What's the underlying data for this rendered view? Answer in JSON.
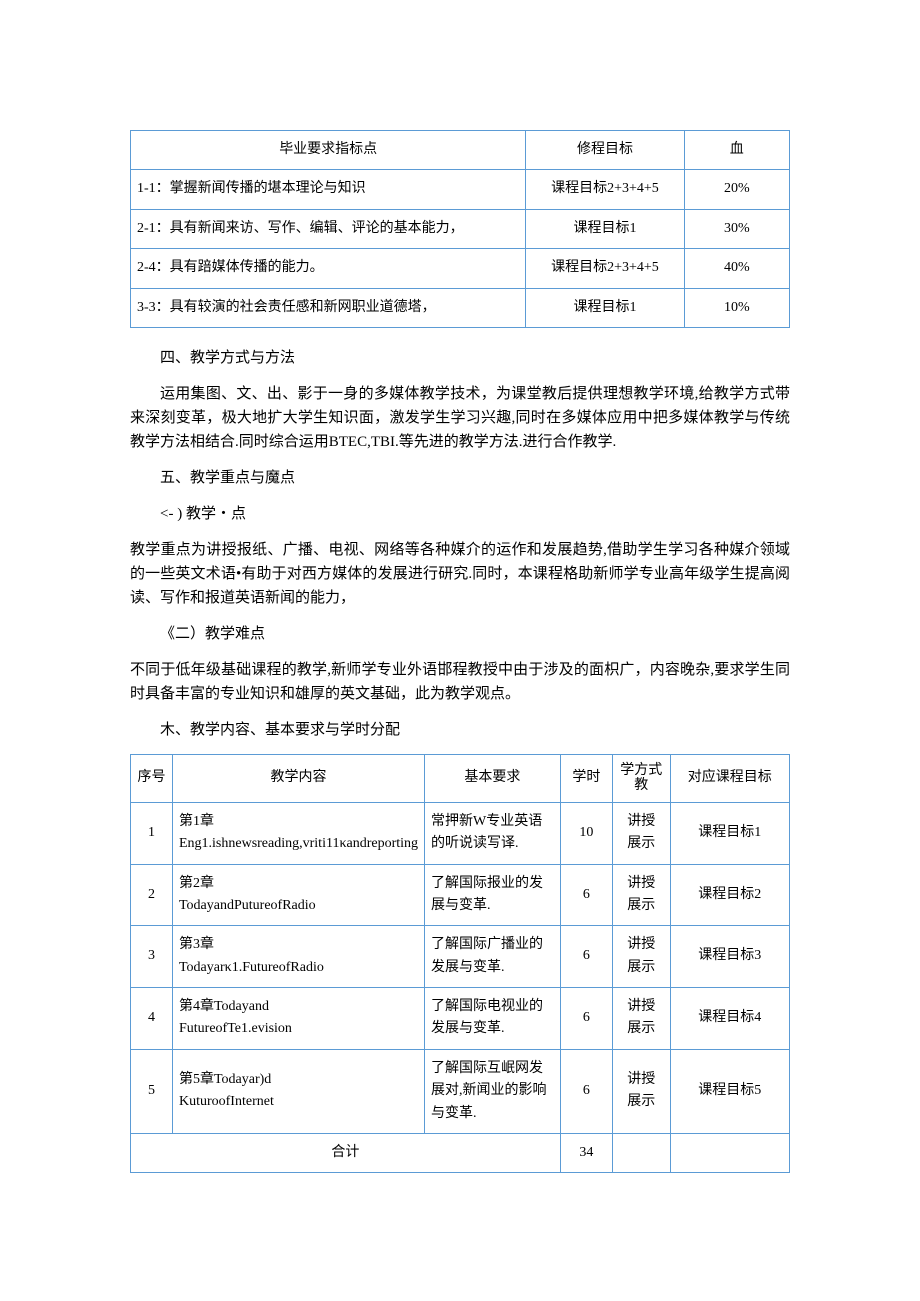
{
  "table1": {
    "border_color": "#5b9bd5",
    "headers": [
      "毕业要求指标点",
      "修程目标",
      "血"
    ],
    "col_widths": [
      "60%",
      "24%",
      "16%"
    ],
    "rows": [
      [
        "1-1：掌握新闻传播的堪本理论与知识",
        "课程目标2+3+4+5",
        "20%"
      ],
      [
        "2-1：具有新闻来访、写作、编辑、评论的基本能力，",
        "课程目标1",
        "30%"
      ],
      [
        "2-4：具有踣媒体传播的能力。",
        "课程目标2+3+4+5",
        "40%"
      ],
      [
        "3-3：具有较演的社会责任感和新网职业道德塔，",
        "课程目标1",
        "10%"
      ]
    ]
  },
  "sections": {
    "h1": "四、教学方式与方法",
    "p1": "运用集图、文、出、影于一身的多媒体教学技术，为课堂教后提供理想教学环境,给教学方式带来深刻变革，极大地扩大学生知识面，激发学生学习兴趣,同时在多媒体应用中把多媒体教学与传统教学方法相结合.同时综合运用BTEC,TBI.等先进的教学方法.进行合作教学.",
    "h2": "五、教学重点与魔点",
    "h2a": "<- ) 教学・点",
    "p2": "教学重点为讲授报纸、广播、电视、网络等各种媒介的运作和发展趋势,借助学生学习各种媒介领域的一些英文术语•有助于对西方媒体的发展进行研究.同时，本课程格助新师学专业高年级学生提高阅读、写作和报道英语新闻的能力，",
    "h2b": "《二）教学难点",
    "p3": "不同于低年级基础课程的教学,新师学专业外语邯程教授中由于涉及的面枳广，内容晚杂,要求学生同时具备丰富的专业知识和雄厚的英文基础，此为教学观点。",
    "h3": "木、教学内容、基本要求与学时分配"
  },
  "table2": {
    "border_color": "#5b9bd5",
    "headers": [
      "序号",
      "教学内容",
      "基本要求",
      "学时",
      "学方式教",
      "对应课程目标"
    ],
    "col_widths": [
      "7%",
      "27%",
      "25%",
      "9%",
      "10%",
      "22%"
    ],
    "rows": [
      {
        "no": "1",
        "content": "第1章\nEng1.ishnewsreading,vriti11κandreporting",
        "req": "常押新W专业英语的听说读写译.",
        "hours": "10",
        "mode": "讲授\n展示",
        "goal": "课程目标1"
      },
      {
        "no": "2",
        "content": "第2章\nTodayandPutureofRadio",
        "req": "了解国际报业的发展与变革.",
        "hours": "6",
        "mode": "讲授\n展示",
        "goal": "课程目标2"
      },
      {
        "no": "3",
        "content": "第3章\nTodayarκ1.FutureofRadio",
        "req": "了解国际广播业的发展与变革.",
        "hours": "6",
        "mode": "讲授\n展示",
        "goal": "课程目标3"
      },
      {
        "no": "4",
        "content": "第4章Todayand\nFutureofTe1.evision",
        "req": "了解国际电视业的发展与变革.",
        "hours": "6",
        "mode": "讲授\n展示",
        "goal": "课程目标4"
      },
      {
        "no": "5",
        "content": "第5章Todayar)d\nKuturoofInternet",
        "req": "了解国际互岷网发展对,新闻业的影响与变革.",
        "hours": "6",
        "mode": "讲授\n展示",
        "goal": "课程目标5"
      }
    ],
    "total_label": "合计",
    "total_hours": "34"
  }
}
